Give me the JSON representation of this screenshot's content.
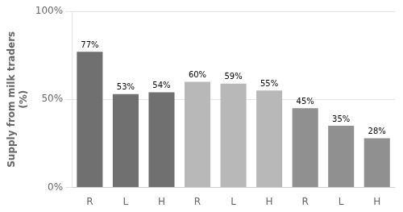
{
  "chart_data": {
    "type": "bar",
    "categories": [
      "R",
      "L",
      "H",
      "R",
      "L",
      "H",
      "R",
      "L",
      "H"
    ],
    "values": [
      77,
      53,
      54,
      60,
      59,
      55,
      45,
      35,
      28
    ],
    "value_labels": [
      "77%",
      "53%",
      "54%",
      "60%",
      "59%",
      "55%",
      "45%",
      "35%",
      "28%"
    ],
    "data_labels": true,
    "colors": [
      "#707070",
      "#707070",
      "#707070",
      "#b8b8b8",
      "#b8b8b8",
      "#b8b8b8",
      "#909090",
      "#909090",
      "#909090"
    ],
    "ylabel": "Supply from milk traders\n(%)",
    "ylim": [
      0,
      100
    ],
    "yticks": [
      {
        "value": 0,
        "label": "0%"
      },
      {
        "value": 50,
        "label": "50%"
      },
      {
        "value": 100,
        "label": "100%"
      }
    ],
    "grid": true
  }
}
